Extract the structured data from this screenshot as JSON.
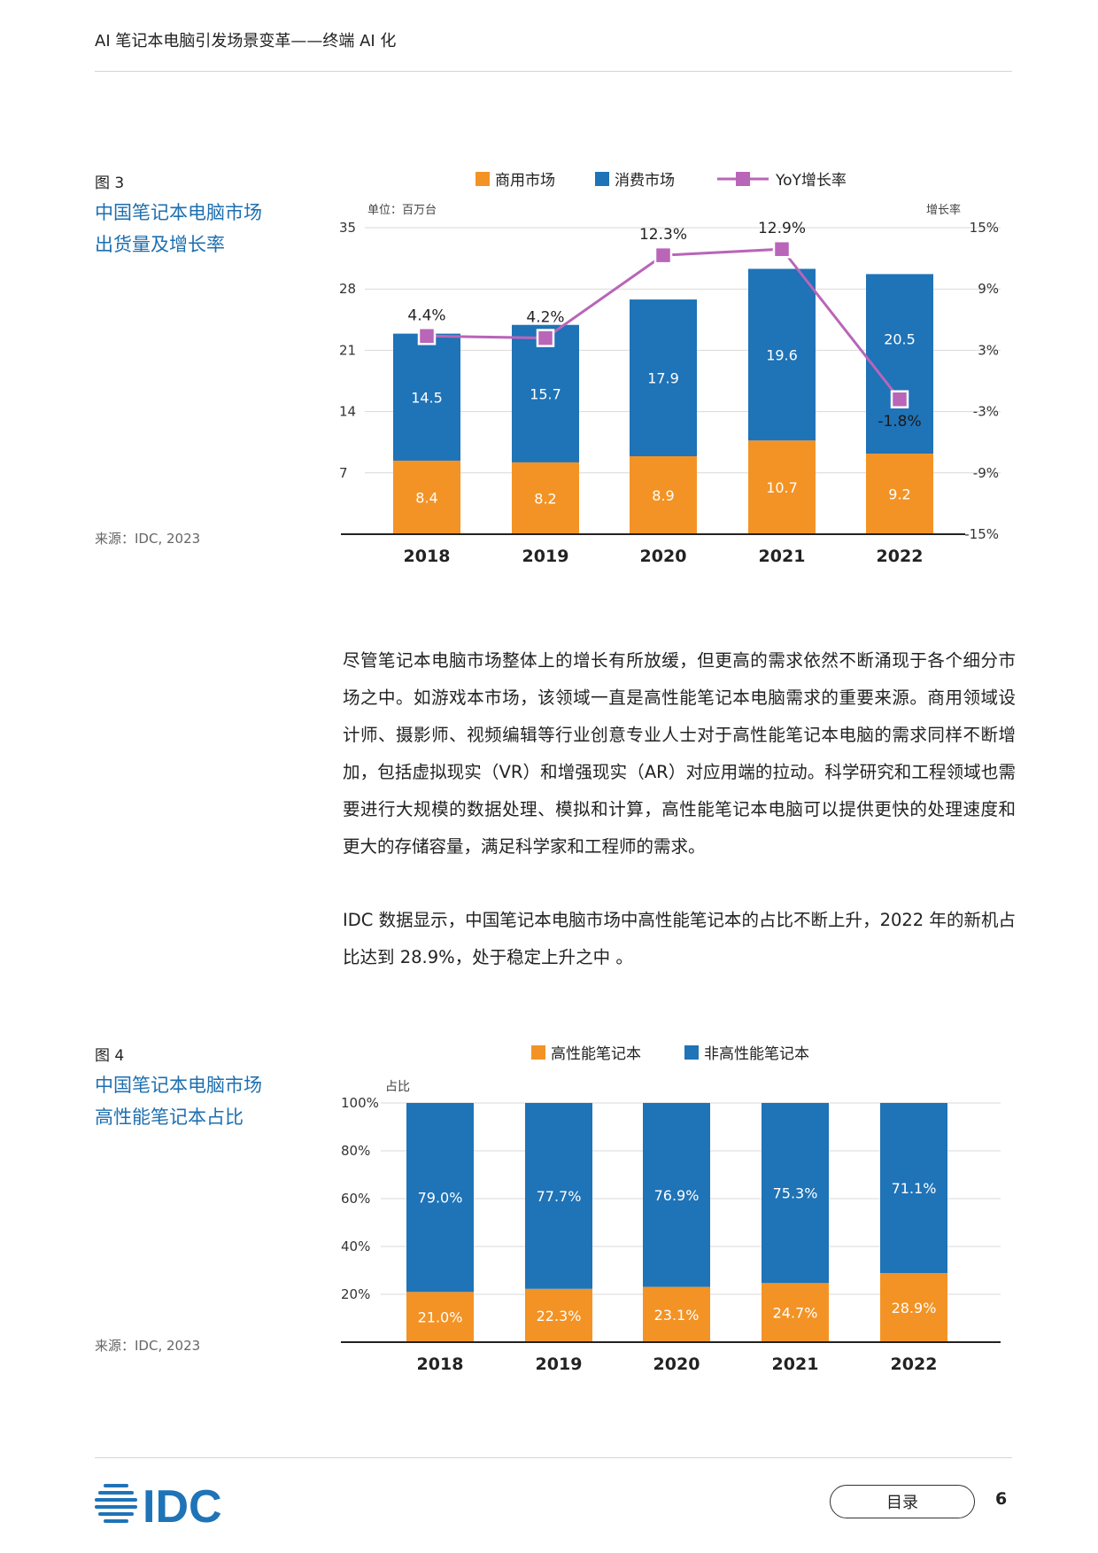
{
  "header": {
    "title": "AI 笔记本电脑引发场景变革——终端 AI 化"
  },
  "figure3": {
    "label": "图 3",
    "title_lines": [
      "中国笔记本电脑市场",
      "出货量及增长率"
    ],
    "source": "来源：IDC, 2023"
  },
  "figure4": {
    "label": "图 4",
    "title_lines": [
      "中国笔记本电脑市场",
      "高性能笔记本占比"
    ],
    "source": "来源：IDC, 2023"
  },
  "body": {
    "paragraph1": "尽管笔记本电脑市场整体上的增长有所放缓，但更高的需求依然不断涌现于各个细分市场之中。如游戏本市场，该领域一直是高性能笔记本电脑需求的重要来源。商用领域设计师、摄影师、视频编辑等行业创意专业人士对于高性能笔记本电脑的需求同样不断增加，包括虚拟现实（VR）和增强现实（AR）对应用端的拉动。科学研究和工程领域也需要进行大规模的数据处理、模拟和计算，高性能笔记本电脑可以提供更快的处理速度和更大的存储容量，满足科学家和工程师的需求。",
    "paragraph2": "IDC 数据显示，中国笔记本电脑市场中高性能笔记本的占比不断上升，2022 年的新机占比达到 28.9%，处于稳定上升之中 。"
  },
  "footer": {
    "logo_text": "IDC",
    "toc_label": "目录",
    "page_number": "6"
  },
  "colors": {
    "orange": "#f39325",
    "blue": "#1f73b7",
    "purple": "#b965b8",
    "title_blue": "#1d6fb0"
  },
  "chart_data": [
    {
      "type": "bar",
      "stacked": true,
      "categories": [
        "2018",
        "2019",
        "2020",
        "2021",
        "2022"
      ],
      "series": [
        {
          "name": "商用市场",
          "values": [
            8.4,
            8.2,
            8.9,
            10.7,
            9.2
          ],
          "labels": [
            "8.4",
            "8.2",
            "8.9",
            "10.7",
            "9.2"
          ]
        },
        {
          "name": "消费市场",
          "values": [
            14.5,
            15.7,
            17.9,
            19.6,
            20.5
          ],
          "labels": [
            "14.5",
            "15.7",
            "17.9",
            "19.6",
            "20.5"
          ]
        }
      ],
      "line_series": {
        "name": "YoY增长率",
        "values": [
          4.4,
          4.2,
          12.3,
          12.9,
          -1.8
        ],
        "labels": [
          "4.4%",
          "4.2%",
          "12.3%",
          "12.9%",
          "-1.8%"
        ]
      },
      "ylabel_left": "单位：百万台",
      "ylabel_right": "增长率",
      "ylim_left": [
        0,
        35
      ],
      "yticks_left": [
        "35",
        "28",
        "21",
        "14",
        "7"
      ],
      "ylim_right": [
        -15,
        15
      ],
      "yticks_right": [
        "15%",
        "9%",
        "3%",
        "-3%",
        "-9%",
        "-15%"
      ],
      "grid": true,
      "legend_position": "top"
    },
    {
      "type": "bar",
      "stacked": true,
      "categories": [
        "2018",
        "2019",
        "2020",
        "2021",
        "2022"
      ],
      "series": [
        {
          "name": "高性能笔记本",
          "values": [
            21.0,
            22.3,
            23.1,
            24.7,
            28.9
          ],
          "labels": [
            "21.0%",
            "22.3%",
            "23.1%",
            "24.7%",
            "28.9%"
          ]
        },
        {
          "name": "非高性能笔记本",
          "values": [
            79.0,
            77.7,
            76.9,
            75.3,
            71.1
          ],
          "labels": [
            "79.0%",
            "77.7%",
            "76.9%",
            "75.3%",
            "71.1%"
          ]
        }
      ],
      "ylabel": "占比",
      "ylim": [
        0,
        100
      ],
      "yticks": [
        "100%",
        "80%",
        "60%",
        "40%",
        "20%"
      ],
      "grid": true,
      "legend_position": "top"
    }
  ]
}
